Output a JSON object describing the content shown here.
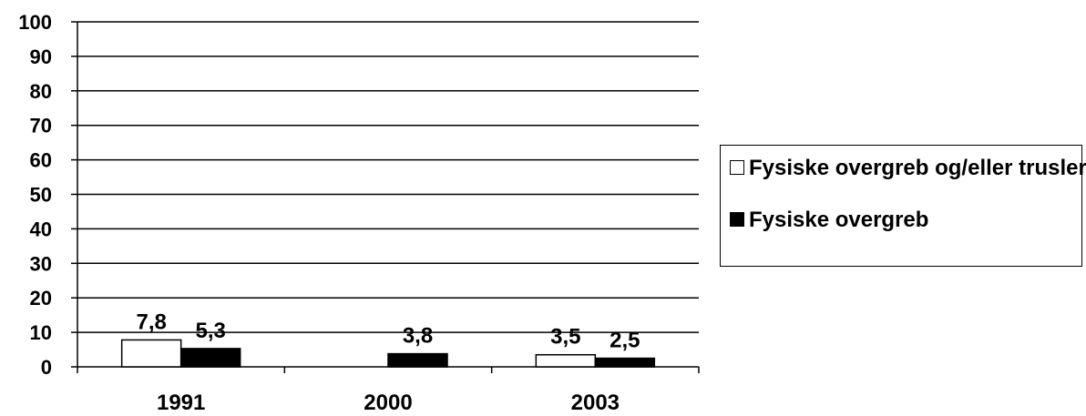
{
  "chart_data": {
    "type": "bar",
    "categories": [
      "1991",
      "2000",
      "2003"
    ],
    "series": [
      {
        "name": "Fysiske overgreb og/eller trusler",
        "values": [
          7.8,
          null,
          3.5
        ],
        "labels": [
          "7,8",
          "",
          "3,5"
        ],
        "color": "#ffffff"
      },
      {
        "name": "Fysiske overgreb",
        "values": [
          5.3,
          3.8,
          2.5
        ],
        "labels": [
          "5,3",
          "3,8",
          "2,5"
        ],
        "color": "#000000"
      }
    ],
    "ylim": [
      0,
      100
    ],
    "yticks": [
      "0",
      "10",
      "20",
      "30",
      "40",
      "50",
      "60",
      "70",
      "80",
      "90",
      "100"
    ],
    "grid": true,
    "legend_position": "right"
  }
}
